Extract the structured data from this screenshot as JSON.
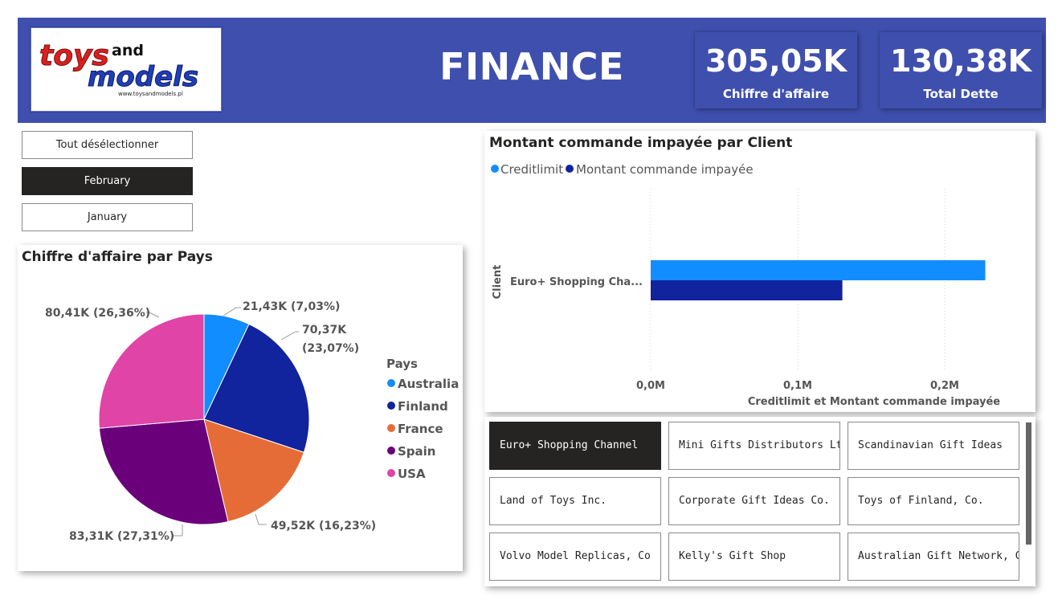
{
  "header": {
    "title": "FINANCE",
    "logo": {
      "text_top": "toys",
      "text_and": "and",
      "text_bottom": "models",
      "url": "www.toysandmodels.pl"
    },
    "kpis": [
      {
        "value": "305,05K",
        "label": "Chiffre d'affaire"
      },
      {
        "value": "130,38K",
        "label": "Total Dette"
      }
    ]
  },
  "month_slicer": {
    "items": [
      {
        "label": "Tout désélectionner",
        "selected": false
      },
      {
        "label": "February",
        "selected": true
      },
      {
        "label": "January",
        "selected": false
      }
    ]
  },
  "pie": {
    "title": "Chiffre d'affaire par Pays",
    "legend_title": "Pays",
    "labels": {
      "australia": "21,43K (7,03%)",
      "finland_1": "70,37K",
      "finland_2": "(23,07%)",
      "france": "49,52K (16,23%)",
      "spain": "83,31K (27,31%)",
      "usa": "80,41K (26,36%)"
    },
    "legend": [
      {
        "name": "Australia",
        "color": "#118dff"
      },
      {
        "name": "Finland",
        "color": "#12239e"
      },
      {
        "name": "France",
        "color": "#e66c37"
      },
      {
        "name": "Spain",
        "color": "#6b007b"
      },
      {
        "name": "USA",
        "color": "#e044a7"
      }
    ]
  },
  "bar": {
    "title": "Montant commande impayée par Client",
    "legend": [
      {
        "name": "Creditlimit",
        "color": "#118dff"
      },
      {
        "name": "Montant commande impayée",
        "color": "#12239e"
      }
    ],
    "y_axis_title": "Client",
    "category": "Euro+ Shopping Cha...",
    "ticks": [
      "0,0M",
      "0,1M",
      "0,2M"
    ],
    "x_axis_title": "Creditlimit et Montant commande impayée"
  },
  "chart_data": [
    {
      "type": "pie",
      "title": "Chiffre d'affaire par Pays",
      "legend_title": "Pays",
      "categories": [
        "Australia",
        "Finland",
        "France",
        "Spain",
        "USA"
      ],
      "values": [
        21430,
        70370,
        49520,
        83310,
        80410
      ],
      "percent": [
        7.03,
        23.07,
        16.23,
        27.31,
        26.36
      ],
      "colors": [
        "#118dff",
        "#12239e",
        "#e66c37",
        "#6b007b",
        "#e044a7"
      ]
    },
    {
      "type": "bar",
      "orientation": "horizontal",
      "title": "Montant commande impayée par Client",
      "categories": [
        "Euro+ Shopping Channel"
      ],
      "series": [
        {
          "name": "Creditlimit",
          "values": [
            227600
          ],
          "color": "#118dff"
        },
        {
          "name": "Montant commande impayée",
          "values": [
            130380
          ],
          "color": "#12239e"
        }
      ],
      "xlabel": "Creditlimit et Montant commande impayée",
      "ylabel": "Client",
      "xlim": [
        0,
        240000
      ],
      "xticks": [
        "0,0M",
        "0,1M",
        "0,2M"
      ]
    }
  ],
  "client_slicer": {
    "items": [
      {
        "label": "Euro+ Shopping Channel",
        "selected": true
      },
      {
        "label": "Mini Gifts Distributors Ltd.",
        "selected": false
      },
      {
        "label": "Scandinavian Gift Ideas",
        "selected": false
      },
      {
        "label": "Land of Toys Inc.",
        "selected": false
      },
      {
        "label": "Corporate Gift Ideas Co.",
        "selected": false
      },
      {
        "label": "Toys of Finland, Co.",
        "selected": false
      },
      {
        "label": "Volvo Model Replicas, Co",
        "selected": false
      },
      {
        "label": "Kelly's Gift Shop",
        "selected": false
      },
      {
        "label": "Australian Gift Network, Co",
        "selected": false
      }
    ]
  }
}
